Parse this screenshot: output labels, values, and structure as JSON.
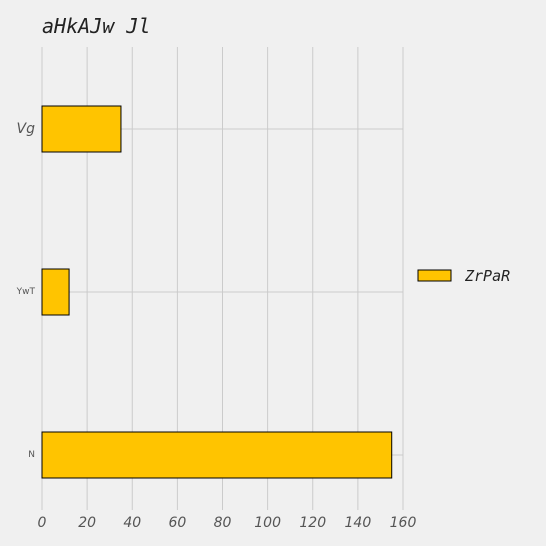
{
  "chart_data": {
    "type": "bar",
    "orientation": "horizontal",
    "title": "aHkAJw Jl",
    "categories": [
      "Vg",
      "YwT",
      "N"
    ],
    "series": [
      {
        "name": "ZrPaR",
        "values": [
          35,
          12,
          155
        ]
      }
    ],
    "x_ticks": [
      "0",
      "20",
      "40",
      "60",
      "80",
      "100",
      "120",
      "140",
      "160"
    ],
    "xlim": [
      0,
      160
    ],
    "grid": true,
    "legend_position": "right",
    "colors": {
      "bar": "#ffc400",
      "bar_edge": "#000000",
      "grid": "#cbcbcb",
      "background": "#f0f0f0"
    }
  }
}
